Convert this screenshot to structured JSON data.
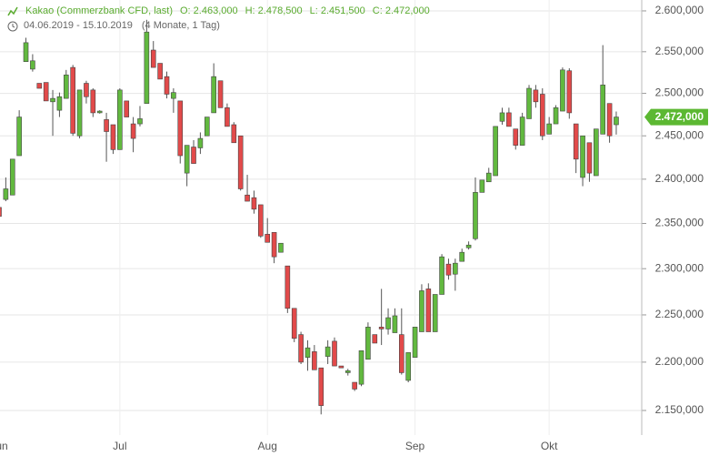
{
  "chart_data": {
    "type": "candlestick",
    "title": "Kakao (Commerzbank CFD, last)",
    "header_stats": [
      "O: 2.463,000",
      "H: 2.478,500",
      "L: 2.451,500",
      "C: 2.472,000"
    ],
    "date_range": "04.06.2019 - 15.10.2019",
    "period": "(4 Monate, 1 Tag)",
    "categories": [
      "Jun",
      null,
      null,
      null,
      null,
      null,
      null,
      null,
      null,
      null,
      null,
      null,
      null,
      null,
      null,
      null,
      null,
      null,
      "Jul",
      null,
      null,
      null,
      null,
      null,
      null,
      null,
      null,
      null,
      null,
      null,
      null,
      null,
      null,
      null,
      null,
      null,
      null,
      null,
      null,
      null,
      "Aug",
      null,
      null,
      null,
      null,
      null,
      null,
      null,
      null,
      null,
      null,
      null,
      null,
      null,
      null,
      null,
      null,
      null,
      null,
      null,
      null,
      null,
      "Sep",
      null,
      null,
      null,
      null,
      null,
      null,
      null,
      null,
      null,
      null,
      null,
      null,
      null,
      null,
      null,
      null,
      null,
      null,
      null,
      "Okt",
      null,
      null,
      null,
      null,
      null,
      null,
      null,
      null,
      null,
      null
    ],
    "open": [
      2368000,
      2377000,
      2382000,
      2427000,
      2538000,
      2529000,
      2512000,
      2513000,
      2490000,
      2480000,
      2494000,
      2531000,
      2450000,
      2512000,
      2504000,
      2477000,
      2469000,
      2463000,
      2434000,
      2491000,
      2464000,
      2464000,
      2488000,
      2552000,
      2536000,
      2520000,
      2494000,
      2491000,
      2407000,
      2437000,
      2436000,
      2450000,
      2477000,
      2515000,
      2483000,
      2463000,
      2450000,
      2382000,
      2379000,
      2371000,
      2338000,
      2340000,
      2318000,
      2303000,
      2257000,
      2229000,
      2205000,
      2211000,
      2194000,
      2206000,
      2222000,
      2196000,
      2189000,
      2179000,
      2177000,
      2203000,
      2229000,
      2237000,
      2235000,
      2231000,
      2229000,
      2181000,
      2205000,
      2232000,
      2278000,
      2232000,
      2272000,
      2305000,
      2294000,
      2308000,
      2323000,
      2333000,
      2385000,
      2397000,
      2404000,
      2467000,
      2477000,
      2458000,
      2439000,
      2470000,
      2504000,
      2499000,
      2452000,
      2464000,
      2479000,
      2527000,
      2464000,
      2402000,
      2442000,
      2404000,
      2452000,
      2488000,
      2463000
    ],
    "high": [
      2368000,
      2402000,
      2423000,
      2480000,
      2567000,
      2547000,
      2512000,
      2513000,
      2504000,
      2501000,
      2528000,
      2534000,
      2504000,
      2515000,
      2506000,
      2480000,
      2477000,
      2463000,
      2506000,
      2491000,
      2472000,
      2485000,
      2589000,
      2563000,
      2536000,
      2526000,
      2506000,
      2491000,
      2439000,
      2445000,
      2454000,
      2472000,
      2536000,
      2515000,
      2488000,
      2466000,
      2450000,
      2405000,
      2387000,
      2371000,
      2356000,
      2340000,
      2328000,
      2303000,
      2257000,
      2232000,
      2223000,
      2218000,
      2194000,
      2223000,
      2226000,
      2196000,
      2193000,
      2179000,
      2212000,
      2242000,
      2229000,
      2278000,
      2257000,
      2257000,
      2257000,
      2210000,
      2237000,
      2283000,
      2284000,
      2272000,
      2316000,
      2311000,
      2311000,
      2322000,
      2330000,
      2402000,
      2399000,
      2413000,
      2461000,
      2483000,
      2483000,
      2458000,
      2477000,
      2510000,
      2510000,
      2506000,
      2472000,
      2486000,
      2531000,
      2530000,
      2464000,
      2450000,
      2442000,
      2458000,
      2558000,
      2488000,
      2478500
    ],
    "low": [
      2340000,
      2375000,
      2382000,
      2427000,
      2538000,
      2526000,
      2506000,
      2491000,
      2450000,
      2472000,
      2494000,
      2450000,
      2447000,
      2488000,
      2472000,
      2476000,
      2420000,
      2429000,
      2434000,
      2472000,
      2431000,
      2461000,
      2488000,
      2531000,
      2517000,
      2494000,
      2477000,
      2418000,
      2392000,
      2418000,
      2429000,
      2450000,
      2477000,
      2483000,
      2461000,
      2442000,
      2387000,
      2375000,
      2361000,
      2334000,
      2329000,
      2306000,
      2318000,
      2252000,
      2221000,
      2198000,
      2191000,
      2192000,
      2146000,
      2198000,
      2196000,
      2194000,
      2186000,
      2170000,
      2175000,
      2203000,
      2220000,
      2218000,
      2229000,
      2231000,
      2187000,
      2179000,
      2205000,
      2232000,
      2232000,
      2232000,
      2272000,
      2288000,
      2276000,
      2308000,
      2321000,
      2331000,
      2385000,
      2397000,
      2404000,
      2463000,
      2461000,
      2434000,
      2439000,
      2470000,
      2483000,
      2445000,
      2452000,
      2464000,
      2479000,
      2470000,
      2407000,
      2392000,
      2397000,
      2404000,
      2452000,
      2442000,
      2451500
    ],
    "close": [
      2358000,
      2389000,
      2423000,
      2472000,
      2561000,
      2539000,
      2506000,
      2491000,
      2494000,
      2496000,
      2522000,
      2453000,
      2504000,
      2496000,
      2477000,
      2479000,
      2455000,
      2434000,
      2504000,
      2472000,
      2447000,
      2470000,
      2574000,
      2531000,
      2517000,
      2499000,
      2501000,
      2427000,
      2439000,
      2418000,
      2447000,
      2472000,
      2520000,
      2483000,
      2461000,
      2442000,
      2389000,
      2375000,
      2366000,
      2336000,
      2329000,
      2313000,
      2328000,
      2257000,
      2225000,
      2200000,
      2215000,
      2192000,
      2155000,
      2216000,
      2196000,
      2194000,
      2191000,
      2172000,
      2212000,
      2237000,
      2220000,
      2235000,
      2247000,
      2249000,
      2189000,
      2210000,
      2237000,
      2276000,
      2232000,
      2272000,
      2313000,
      2293000,
      2306000,
      2318000,
      2326000,
      2385000,
      2399000,
      2407000,
      2461000,
      2477000,
      2461000,
      2439000,
      2472000,
      2506000,
      2490000,
      2450000,
      2464000,
      2483000,
      2528000,
      2477000,
      2423000,
      2450000,
      2407000,
      2458000,
      2510000,
      2450000,
      2472000
    ],
    "up_color": "#62b93f",
    "down_color": "#e24a4a",
    "ylim": [
      2125000,
      2613500
    ],
    "log_scale": true,
    "grid": true,
    "yticks": [
      {
        "value": 2150000,
        "label": "2.150,000"
      },
      {
        "value": 2200000,
        "label": "2.200,000"
      },
      {
        "value": 2250000,
        "label": "2.250,000"
      },
      {
        "value": 2300000,
        "label": "2.300,000"
      },
      {
        "value": 2350000,
        "label": "2.350,000"
      },
      {
        "value": 2400000,
        "label": "2.400,000"
      },
      {
        "value": 2450000,
        "label": "2.450,000"
      },
      {
        "value": 2500000,
        "label": "2.500,000"
      },
      {
        "value": 2550000,
        "label": "2.550,000"
      },
      {
        "value": 2600000,
        "label": "2.600,000"
      }
    ],
    "last_price": {
      "value": 2472000,
      "label": "2.472,000"
    }
  }
}
